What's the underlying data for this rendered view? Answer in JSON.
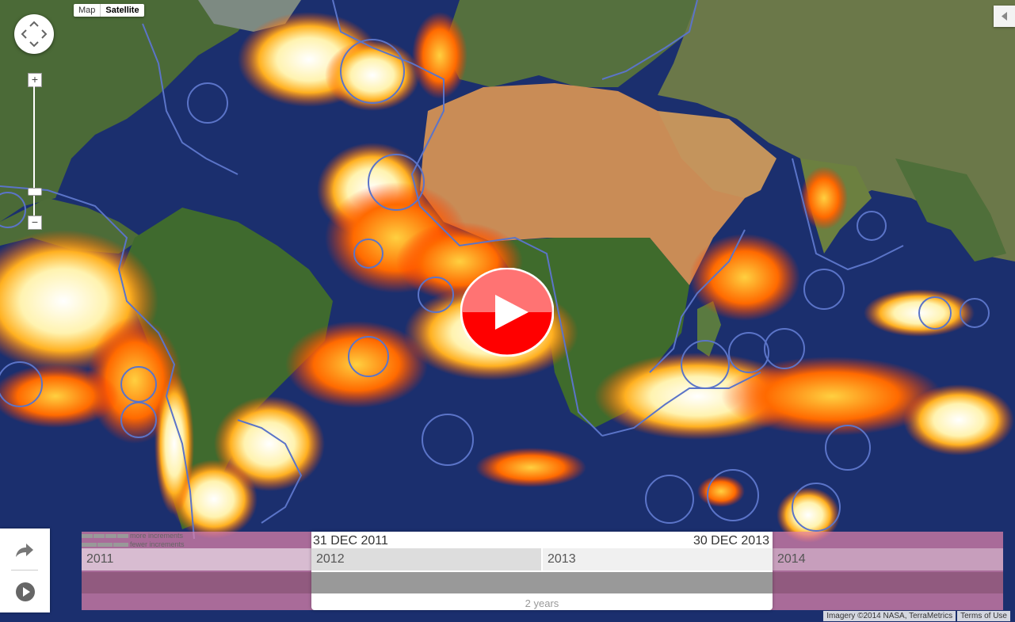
{
  "map_type": {
    "map_label": "Map",
    "satellite_label": "Satellite",
    "selected": "Satellite"
  },
  "colors": {
    "ocean": "#1b2f6e",
    "land": "#4d6b3a",
    "desert": "#c9925a",
    "heat_hot": "#ffffff",
    "heat_mid": "#ffcc33",
    "heat_low": "#ff5a00",
    "boundary": "#5b74c8",
    "timeline_bg": "#e082aa",
    "play_button": "#ff0000"
  },
  "timeline": {
    "more_increments": "more increments",
    "fewer_increments": "fewer increments",
    "years": [
      "2011",
      "2012",
      "2013",
      "2014"
    ],
    "start_date": "31 DEC 2011",
    "end_date": "30 DEC 2013",
    "duration": "2 years"
  },
  "attribution": {
    "imagery": "Imagery ©2014 NASA, TerraMetrics",
    "terms": "Terms of Use"
  },
  "icons": {
    "pan": "pan-control-icon",
    "share": "share-icon",
    "play": "play-icon",
    "collapse": "collapse-panel-icon"
  }
}
